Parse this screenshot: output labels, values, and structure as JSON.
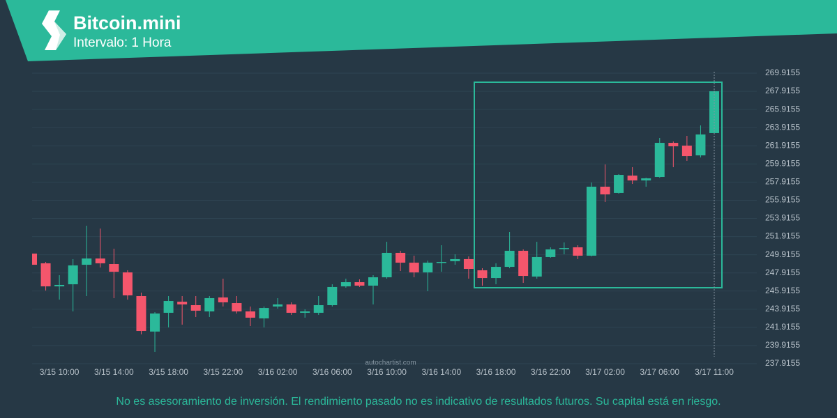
{
  "chart_data": {
    "type": "candlestick",
    "title": "Bitcoin.mini",
    "subtitle": "Intervalo: 1 Hora",
    "categories": [
      null,
      null,
      "3/15 10:00",
      null,
      null,
      null,
      "3/15 14:00",
      null,
      null,
      null,
      "3/15 18:00",
      null,
      null,
      null,
      "3/15 22:00",
      null,
      null,
      null,
      "3/16 02:00",
      null,
      null,
      null,
      "3/16 06:00",
      null,
      null,
      null,
      "3/16 10:00",
      null,
      null,
      null,
      "3/16 14:00",
      null,
      null,
      null,
      "3/16 18:00",
      null,
      null,
      null,
      "3/16 22:00",
      null,
      null,
      null,
      "3/17 02:00",
      null,
      null,
      null,
      "3/17 06:00",
      null,
      null,
      null,
      "3/17 11:00"
    ],
    "open": [
      250.04,
      248.97,
      246.43,
      246.66,
      248.81,
      249.5,
      248.89,
      247.97,
      245.36,
      241.45,
      243.52,
      244.74,
      244.36,
      243.67,
      245.21,
      244.59,
      243.67,
      242.9,
      244.21,
      244.44,
      243.52,
      243.52,
      244.36,
      246.43,
      246.89,
      246.51,
      247.43,
      250.12,
      249.04,
      247.97,
      249.04,
      249.2,
      249.43,
      248.2,
      247.35,
      248.58,
      250.35,
      247.51,
      249.66,
      250.58,
      250.73,
      249.81,
      257.41,
      256.72,
      258.63,
      258.1,
      258.48,
      262.24,
      261.93,
      260.86,
      263.32
    ],
    "high": [
      250.04,
      249.12,
      247.66,
      249.43,
      253.11,
      252.8,
      250.58,
      248.2,
      245.74,
      243.59,
      245.36,
      245.36,
      245.36,
      245.36,
      247.28,
      245.36,
      244.21,
      244.21,
      245.13,
      244.67,
      243.9,
      245.36,
      246.66,
      247.28,
      247.2,
      247.66,
      251.34,
      250.35,
      249.81,
      249.27,
      250.96,
      249.96,
      249.73,
      248.43,
      248.97,
      252.42,
      250.5,
      251.34,
      250.73,
      251.27,
      250.96,
      257.87,
      259.86,
      258.79,
      259.56,
      258.4,
      262.78,
      262.39,
      263.01,
      264.16,
      268.0
    ],
    "low": [
      248.81,
      245.97,
      244.97,
      243.67,
      245.36,
      248.51,
      245.13,
      244.97,
      241.14,
      239.22,
      241.91,
      242.21,
      243.06,
      243.06,
      244.21,
      243.44,
      242.06,
      241.91,
      243.98,
      243.29,
      242.98,
      243.29,
      244.21,
      246.28,
      246.36,
      244.44,
      247.28,
      248.12,
      247.43,
      245.9,
      248.04,
      248.81,
      247.28,
      246.51,
      246.66,
      248.43,
      246.82,
      247.28,
      249.58,
      249.96,
      249.43,
      249.73,
      255.72,
      256.64,
      257.71,
      257.41,
      258.4,
      259.56,
      260.25,
      260.63,
      263.24
    ],
    "close": [
      248.81,
      246.43,
      246.59,
      248.74,
      249.5,
      248.97,
      248.04,
      245.44,
      241.52,
      243.44,
      244.82,
      244.44,
      243.75,
      245.13,
      244.67,
      243.67,
      242.98,
      244.05,
      244.44,
      243.52,
      243.67,
      244.36,
      246.36,
      246.89,
      246.51,
      247.43,
      250.12,
      249.04,
      247.97,
      249.04,
      249.12,
      249.43,
      248.35,
      247.35,
      248.58,
      250.35,
      247.58,
      249.66,
      250.5,
      250.65,
      249.81,
      257.41,
      256.56,
      258.71,
      258.1,
      258.33,
      262.24,
      261.86,
      260.78,
      263.16,
      267.92
    ],
    "up_color": "#2bb99a",
    "down_color": "#f5566c",
    "ylim": [
      237.9155,
      269.9155
    ],
    "yticks": [
      237.9155,
      239.9155,
      241.9155,
      243.9155,
      245.9155,
      247.9155,
      249.9155,
      251.9155,
      253.9155,
      255.9155,
      257.9155,
      259.9155,
      261.9155,
      263.9155,
      265.9155,
      267.9155,
      269.9155
    ],
    "grid": true
  },
  "watermark": "autochartist.com",
  "disclaimer": "No es asesoramiento de inversión. El rendimiento pasado no es indicativo de resultados futuros. Su capital está en riesgo."
}
